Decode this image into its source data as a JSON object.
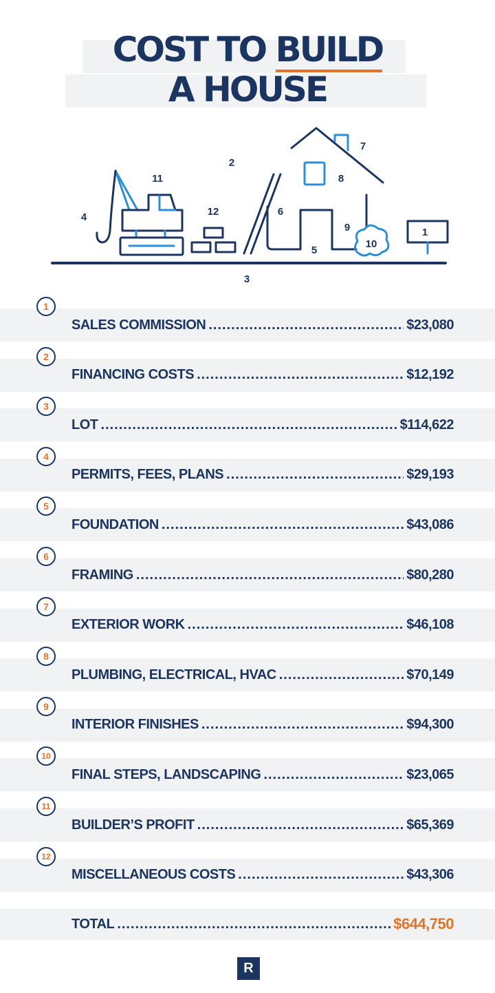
{
  "title": {
    "line1_a": "COST TO ",
    "line1_b": "BUILD",
    "line2": "A HOUSE"
  },
  "illustration_labels": [
    "1",
    "2",
    "3",
    "4",
    "5",
    "6",
    "7",
    "8",
    "9",
    "10",
    "11",
    "12"
  ],
  "items": [
    {
      "num": "1",
      "label": "SALES COMMISSION",
      "amount": "$23,080"
    },
    {
      "num": "2",
      "label": "FINANCING COSTS",
      "amount": "$12,192"
    },
    {
      "num": "3",
      "label": "LOT",
      "amount": "$114,622"
    },
    {
      "num": "4",
      "label": "PERMITS, FEES, PLANS",
      "amount": "$29,193"
    },
    {
      "num": "5",
      "label": "FOUNDATION",
      "amount": "$43,086"
    },
    {
      "num": "6",
      "label": "FRAMING",
      "amount": "$80,280"
    },
    {
      "num": "7",
      "label": "EXTERIOR WORK",
      "amount": "$46,108"
    },
    {
      "num": "8",
      "label": "PLUMBING, ELECTRICAL, HVAC",
      "amount": "$70,149"
    },
    {
      "num": "9",
      "label": "INTERIOR FINISHES",
      "amount": "$94,300"
    },
    {
      "num": "10",
      "label": "FINAL STEPS, LANDSCAPING",
      "amount": "$23,065"
    },
    {
      "num": "11",
      "label": "BUILDER’S PROFIT",
      "amount": "$65,369"
    },
    {
      "num": "12",
      "label": "MISCELLANEOUS COSTS",
      "amount": "$43,306"
    }
  ],
  "total": {
    "label": "TOTAL",
    "amount": "$644,750"
  },
  "logo": {
    "letter": "R"
  },
  "colors": {
    "navy": "#1b3560",
    "orange": "#e0742a",
    "blue": "#2a8fd6",
    "band": "#f1f2f4"
  }
}
